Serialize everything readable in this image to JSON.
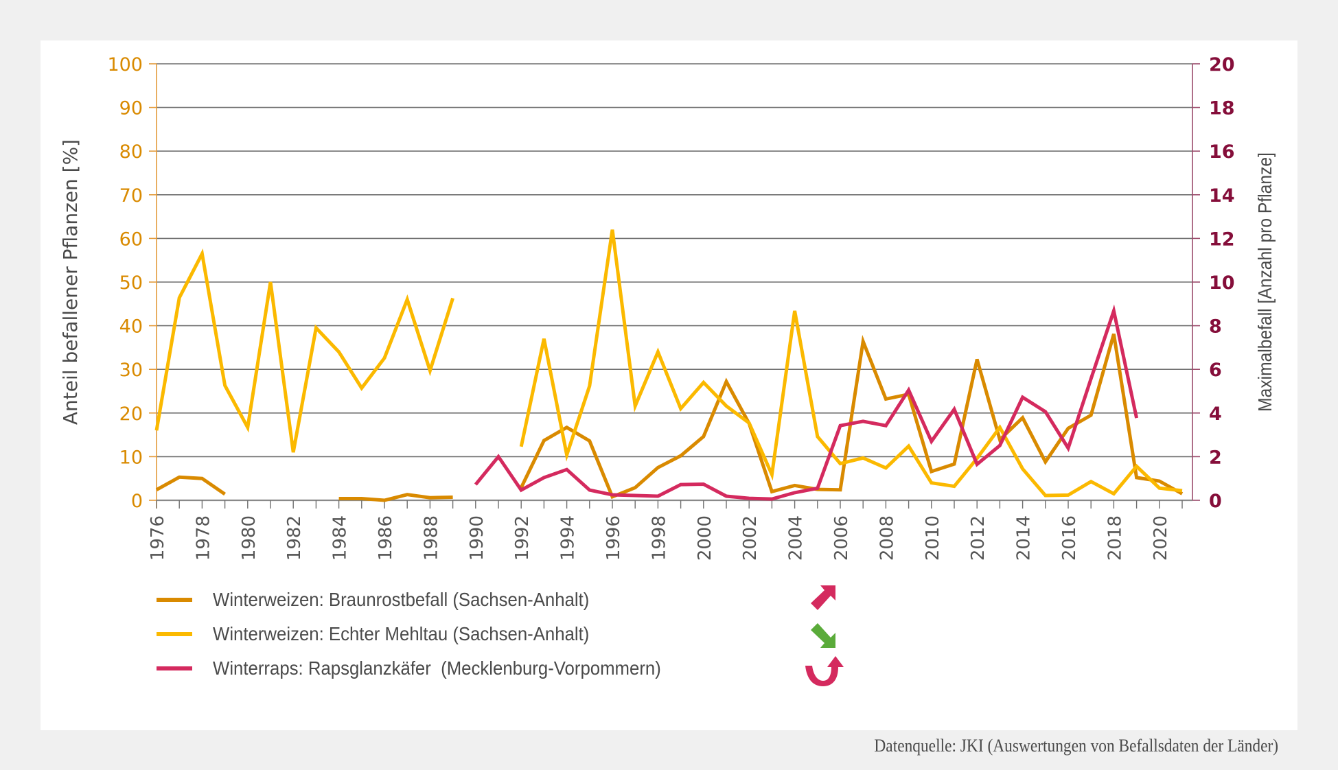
{
  "chart_data": {
    "type": "line",
    "title": "",
    "xlabel": "",
    "ylabel_left": "Anteil befallener Pflanzen [%]",
    "ylabel_right": "Maximalbefall [Anzahl pro  Pflanze]",
    "x_range": [
      1976,
      2021
    ],
    "ylim_left": [
      0,
      100
    ],
    "ylim_right": [
      0,
      20
    ],
    "y_ticks_left": [
      "0",
      "10",
      "20",
      "30",
      "40",
      "50",
      "60",
      "70",
      "80",
      "90",
      "100"
    ],
    "y_ticks_right": [
      "0",
      "2",
      "4",
      "6",
      "8",
      "10",
      "12",
      "14",
      "16",
      "18",
      "20"
    ],
    "x_tick_labels": [
      "1976",
      "1978",
      "1980",
      "1982",
      "1984",
      "1986",
      "1988",
      "1990",
      "1992",
      "1994",
      "1996",
      "1998",
      "2000",
      "2002",
      "2004",
      "2006",
      "2008",
      "2010",
      "2012",
      "2014",
      "2016",
      "2018",
      "2020"
    ],
    "grid": "horizontal",
    "legend_position": "bottom-left",
    "series": [
      {
        "name": "Winterweizen: Braunrostbefall (Sachsen-Anhalt)",
        "axis": "left",
        "color": "#d98a00",
        "trend": "increasing",
        "points": [
          [
            1976,
            2.4
          ],
          [
            1977,
            5.3
          ],
          [
            1978,
            5.0
          ],
          [
            1979,
            1.4
          ],
          [
            1980,
            null
          ],
          [
            1981,
            null
          ],
          [
            1982,
            null
          ],
          [
            1983,
            null
          ],
          [
            1984,
            0.4
          ],
          [
            1985,
            0.4
          ],
          [
            1986,
            0.0
          ],
          [
            1987,
            1.3
          ],
          [
            1988,
            0.6
          ],
          [
            1989,
            0.7
          ],
          [
            1990,
            null
          ],
          [
            1991,
            null
          ],
          [
            1992,
            2.9
          ],
          [
            1993,
            13.7
          ],
          [
            1994,
            16.7
          ],
          [
            1995,
            13.6
          ],
          [
            1996,
            0.8
          ],
          [
            1997,
            2.9
          ],
          [
            1998,
            7.5
          ],
          [
            1999,
            10.2
          ],
          [
            2000,
            14.6
          ],
          [
            2001,
            27.2
          ],
          [
            2002,
            17.6
          ],
          [
            2003,
            2.0
          ],
          [
            2004,
            3.4
          ],
          [
            2005,
            2.5
          ],
          [
            2006,
            2.4
          ],
          [
            2007,
            36.4
          ],
          [
            2008,
            23.2
          ],
          [
            2009,
            24.3
          ],
          [
            2010,
            6.6
          ],
          [
            2011,
            8.3
          ],
          [
            2012,
            32.3
          ],
          [
            2013,
            13.9
          ],
          [
            2014,
            18.9
          ],
          [
            2015,
            8.8
          ],
          [
            2016,
            16.5
          ],
          [
            2017,
            19.5
          ],
          [
            2018,
            38.1
          ],
          [
            2019,
            5.2
          ],
          [
            2020,
            4.4
          ],
          [
            2021,
            1.5
          ]
        ]
      },
      {
        "name": "Winterweizen: Echter Mehltau (Sachsen-Anhalt)",
        "axis": "left",
        "color": "#fbb900",
        "trend": "decreasing",
        "points": [
          [
            1976,
            16.0
          ],
          [
            1977,
            46.4
          ],
          [
            1978,
            56.5
          ],
          [
            1979,
            26.3
          ],
          [
            1980,
            16.7
          ],
          [
            1981,
            50.0
          ],
          [
            1982,
            11.0
          ],
          [
            1983,
            39.5
          ],
          [
            1984,
            34.0
          ],
          [
            1985,
            25.7
          ],
          [
            1986,
            32.6
          ],
          [
            1987,
            46.0
          ],
          [
            1988,
            29.7
          ],
          [
            1989,
            46.3
          ],
          [
            1990,
            null
          ],
          [
            1991,
            null
          ],
          [
            1992,
            12.3
          ],
          [
            1993,
            37.0
          ],
          [
            1994,
            10.4
          ],
          [
            1995,
            26.2
          ],
          [
            1996,
            62.0
          ],
          [
            1997,
            21.6
          ],
          [
            1998,
            34.0
          ],
          [
            1999,
            21.0
          ],
          [
            2000,
            27.0
          ],
          [
            2001,
            21.6
          ],
          [
            2002,
            17.7
          ],
          [
            2003,
            5.9
          ],
          [
            2004,
            43.4
          ],
          [
            2005,
            14.6
          ],
          [
            2006,
            8.4
          ],
          [
            2007,
            9.7
          ],
          [
            2008,
            7.4
          ],
          [
            2009,
            12.4
          ],
          [
            2010,
            4.0
          ],
          [
            2011,
            3.2
          ],
          [
            2012,
            9.6
          ],
          [
            2013,
            16.7
          ],
          [
            2014,
            7.2
          ],
          [
            2015,
            1.1
          ],
          [
            2016,
            1.2
          ],
          [
            2017,
            4.3
          ],
          [
            2018,
            1.5
          ],
          [
            2019,
            7.8
          ],
          [
            2020,
            2.8
          ],
          [
            2021,
            2.2
          ]
        ]
      },
      {
        "name": "Winterraps: Rapsglanzkäfer  (Mecklenburg-Vorpommern)",
        "axis": "right",
        "color": "#d42a5e",
        "trend": "trend-reversal",
        "points": [
          [
            1990,
            0.72
          ],
          [
            1991,
            2.0
          ],
          [
            1992,
            0.47
          ],
          [
            1993,
            1.04
          ],
          [
            1994,
            1.41
          ],
          [
            1995,
            0.47
          ],
          [
            1996,
            0.25
          ],
          [
            1997,
            0.22
          ],
          [
            1998,
            0.19
          ],
          [
            1999,
            0.72
          ],
          [
            2000,
            0.74
          ],
          [
            2001,
            0.19
          ],
          [
            2002,
            0.09
          ],
          [
            2003,
            0.06
          ],
          [
            2004,
            0.35
          ],
          [
            2005,
            0.55
          ],
          [
            2006,
            3.42
          ],
          [
            2007,
            3.62
          ],
          [
            2008,
            3.42
          ],
          [
            2009,
            5.05
          ],
          [
            2010,
            2.7
          ],
          [
            2011,
            4.17
          ],
          [
            2012,
            1.65
          ],
          [
            2013,
            2.51
          ],
          [
            2014,
            4.72
          ],
          [
            2015,
            4.06
          ],
          [
            2016,
            2.39
          ],
          [
            2017,
            5.57
          ],
          [
            2018,
            8.68
          ],
          [
            2019,
            3.77
          ]
        ]
      }
    ],
    "axis_colors": {
      "left_ticks": "#d98a00",
      "right_ticks": "#850e3a",
      "axis_titles": "#4a4a4a",
      "grid": "#6f6f6f"
    }
  },
  "legend": {
    "items": [
      {
        "label": "Winterweizen: Braunrostbefall (Sachsen-Anhalt)",
        "color": "#d98a00",
        "trend_icon": "arrow-up-right-icon",
        "trend_color": "#d42a5e"
      },
      {
        "label": "Winterweizen: Echter Mehltau (Sachsen-Anhalt)",
        "color": "#fbb900",
        "trend_icon": "arrow-down-right-icon",
        "trend_color": "#5aab3a"
      },
      {
        "label": "Winterraps: Rapsglanzkäfer  (Mecklenburg-Vorpommern)",
        "color": "#d42a5e",
        "trend_icon": "u-turn-arrow-icon",
        "trend_color": "#d42a5e"
      }
    ]
  },
  "source": "Datenquelle: JKI (Auswertungen von Befallsdaten der Länder)"
}
